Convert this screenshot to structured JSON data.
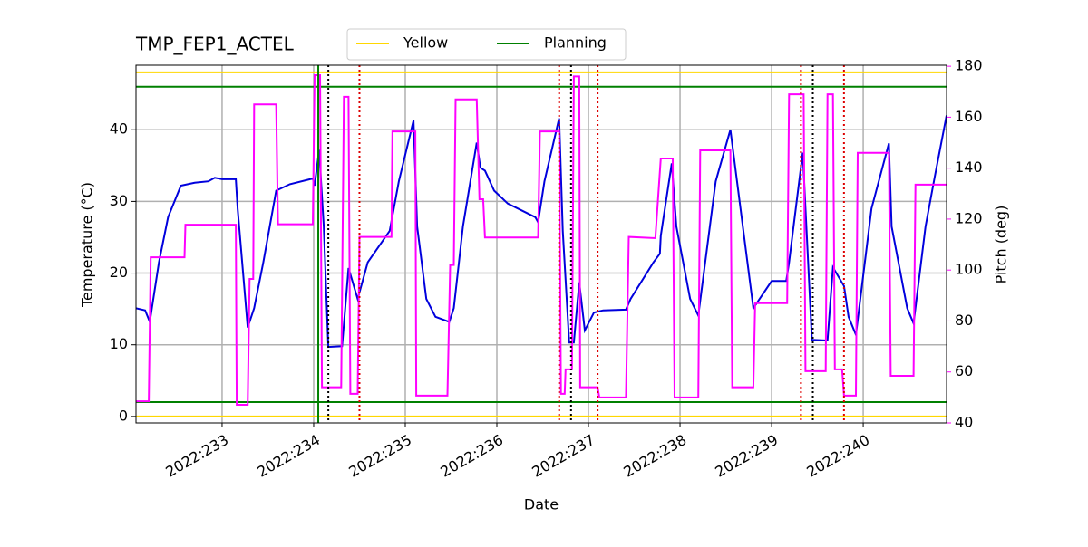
{
  "chart_data": {
    "type": "line",
    "title": "TMP_FEP1_ACTEL",
    "x_label": "Date",
    "y_label": "Temperature (°C)",
    "y2_label": "Pitch (deg)",
    "xlim": [
      232.06,
      240.91
    ],
    "xticks": [
      {
        "value": 233,
        "label": "2022:233"
      },
      {
        "value": 234,
        "label": "2022:234"
      },
      {
        "value": 235,
        "label": "2022:235"
      },
      {
        "value": 236,
        "label": "2022:236"
      },
      {
        "value": 237,
        "label": "2022:237"
      },
      {
        "value": 238,
        "label": "2022:238"
      },
      {
        "value": 239,
        "label": "2022:239"
      },
      {
        "value": 240,
        "label": "2022:240"
      }
    ],
    "ylim": [
      -0.9,
      49
    ],
    "yticks": [
      0,
      10,
      20,
      30,
      40
    ],
    "y2lim": [
      40,
      180.4
    ],
    "y2ticks": [
      40,
      60,
      80,
      100,
      120,
      140,
      160,
      180
    ],
    "y2_color": "#ff00ff",
    "grid": true,
    "series": [
      {
        "color": "#0000dd",
        "axis": "y",
        "x": [
          232.06,
          232.16,
          232.21,
          232.31,
          232.41,
          232.55,
          232.7,
          232.85,
          232.92,
          233.0,
          233.15,
          233.17,
          233.28,
          233.35,
          233.45,
          233.59,
          233.74,
          233.99,
          234.01,
          234.06,
          234.11,
          234.16,
          234.31,
          234.38,
          234.48,
          234.59,
          234.83,
          234.93,
          235.09,
          235.13,
          235.23,
          235.33,
          235.48,
          235.53,
          235.63,
          235.78,
          235.82,
          235.87,
          235.97,
          236.12,
          236.42,
          236.45,
          236.52,
          236.68,
          236.72,
          236.79,
          236.84,
          236.9,
          236.96,
          237.06,
          237.16,
          237.41,
          237.46,
          237.71,
          237.78,
          237.79,
          237.91,
          237.96,
          238.11,
          238.2,
          238.39,
          238.55,
          238.68,
          238.8,
          239.0,
          239.16,
          239.19,
          239.34,
          239.44,
          239.61,
          239.67,
          239.79,
          239.84,
          239.92,
          240.09,
          240.28,
          240.31,
          240.48,
          240.55,
          240.68,
          240.78,
          240.91
        ],
        "values": [
          15.1,
          14.8,
          13.2,
          21.5,
          27.8,
          32.2,
          32.6,
          32.8,
          33.3,
          33.1,
          33.1,
          29.0,
          12.4,
          15.1,
          21.5,
          31.5,
          32.4,
          33.2,
          32.2,
          37.2,
          26.5,
          9.7,
          9.8,
          20.7,
          16.4,
          21.5,
          25.9,
          32.8,
          41.3,
          26.5,
          16.4,
          13.9,
          13.2,
          15.1,
          26.5,
          38.2,
          34.7,
          34.3,
          31.5,
          29.7,
          27.8,
          27.1,
          32.8,
          41.6,
          25.9,
          10.3,
          10.3,
          18.7,
          12.0,
          14.5,
          14.8,
          14.9,
          16.4,
          21.5,
          22.7,
          25.2,
          35.3,
          26.5,
          16.4,
          14.1,
          32.8,
          40.0,
          27.1,
          15.1,
          18.9,
          18.9,
          21.5,
          36.8,
          10.7,
          10.6,
          20.8,
          18.2,
          13.9,
          11.4,
          29.0,
          38.1,
          26.5,
          15.1,
          13.0,
          26.5,
          33.4,
          42.0
        ]
      },
      {
        "color": "#ff00ff",
        "axis": "y2",
        "x": [
          232.06,
          232.2,
          232.22,
          232.59,
          232.6,
          233.15,
          233.16,
          233.28,
          233.3,
          233.34,
          233.35,
          233.59,
          233.61,
          233.99,
          234.01,
          234.07,
          234.09,
          234.3,
          234.33,
          234.38,
          234.4,
          234.48,
          234.5,
          234.85,
          234.86,
          235.11,
          235.12,
          235.46,
          235.49,
          235.53,
          235.55,
          235.78,
          235.81,
          235.85,
          235.87,
          236.45,
          236.47,
          236.68,
          236.7,
          236.74,
          236.75,
          236.82,
          236.84,
          236.9,
          236.91,
          237.1,
          237.12,
          237.41,
          237.44,
          237.73,
          237.79,
          237.92,
          237.94,
          238.2,
          238.22,
          238.55,
          238.57,
          238.8,
          238.82,
          239.17,
          239.19,
          239.35,
          239.37,
          239.59,
          239.61,
          239.67,
          239.69,
          239.77,
          239.79,
          239.92,
          239.94,
          240.28,
          240.3,
          240.55,
          240.57,
          240.91
        ],
        "values": [
          48.5,
          48.5,
          105,
          105,
          117.8,
          117.8,
          47.1,
          47.1,
          96.5,
          96.5,
          165,
          165,
          118,
          118,
          176.5,
          176.5,
          54,
          54,
          168,
          168,
          51.4,
          51.4,
          113,
          113,
          154.4,
          154.4,
          50.7,
          50.7,
          102,
          102,
          167,
          167,
          127.8,
          127.8,
          112.8,
          112.8,
          154.4,
          154.4,
          51.4,
          51.4,
          61,
          61,
          176,
          176,
          54,
          54,
          50,
          50,
          113,
          112.5,
          143.8,
          143.8,
          50,
          50,
          147,
          147,
          54,
          54,
          87,
          87,
          169,
          169,
          60.3,
          60.3,
          169,
          169,
          61,
          61,
          50.7,
          50.7,
          146,
          146,
          58.5,
          58.5,
          133.5,
          133.5
        ]
      }
    ],
    "hlines": [
      {
        "name": "Yellow",
        "color": "#ffd700",
        "values": [
          0,
          48
        ]
      },
      {
        "name": "Planning",
        "color": "#008000",
        "values": [
          2,
          46
        ]
      }
    ],
    "vlines": [
      {
        "color": "#008000",
        "style": "solid",
        "x": [
          234.05
        ]
      },
      {
        "color": "#000000",
        "style": "dotted",
        "x": [
          234.16,
          236.81,
          239.45
        ]
      },
      {
        "color": "#dd0000",
        "style": "dotted",
        "x": [
          234.5,
          236.68,
          237.1,
          239.32,
          239.79
        ]
      }
    ]
  }
}
